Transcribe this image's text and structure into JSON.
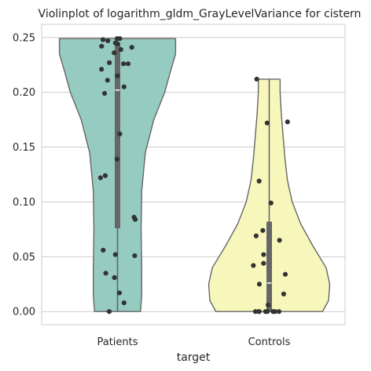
{
  "chart_data": {
    "type": "violin",
    "title": "Violinplot of logarithm_gldm_GrayLevelVariance for cistern",
    "xlabel": "target",
    "ylabel": "",
    "ylim": [
      -0.012,
      0.262
    ],
    "yticks": [
      "0.00",
      "0.05",
      "0.10",
      "0.15",
      "0.20",
      "0.25"
    ],
    "ytick_values": [
      0.0,
      0.05,
      0.1,
      0.15,
      0.2,
      0.25
    ],
    "grid": true,
    "categories": [
      "Patients",
      "Controls"
    ],
    "series": [
      {
        "category": "Patients",
        "color": "#95cbc1",
        "range": [
          0.0,
          0.249
        ],
        "quartiles": [
          0.076,
          0.202,
          0.245
        ],
        "median": 0.202,
        "points": [
          0.249,
          0.249,
          0.248,
          0.247,
          0.245,
          0.244,
          0.242,
          0.241,
          0.239,
          0.236,
          0.227,
          0.226,
          0.226,
          0.221,
          0.215,
          0.211,
          0.205,
          0.199,
          0.162,
          0.139,
          0.124,
          0.122,
          0.086,
          0.084,
          0.056,
          0.052,
          0.051,
          0.035,
          0.031,
          0.017,
          0.008,
          0.0
        ],
        "density": [
          [
            0.0,
            0.38
          ],
          [
            0.015,
            0.4
          ],
          [
            0.04,
            0.4
          ],
          [
            0.075,
            0.39
          ],
          [
            0.11,
            0.4
          ],
          [
            0.145,
            0.46
          ],
          [
            0.175,
            0.6
          ],
          [
            0.2,
            0.78
          ],
          [
            0.22,
            0.88
          ],
          [
            0.235,
            0.96
          ],
          [
            0.249,
            0.96
          ]
        ]
      },
      {
        "category": "Controls",
        "color": "#f7f7bb",
        "range": [
          0.0,
          0.212
        ],
        "quartiles": [
          0.0,
          0.026,
          0.082
        ],
        "median": 0.026,
        "points": [
          0.212,
          0.173,
          0.172,
          0.119,
          0.099,
          0.074,
          0.069,
          0.065,
          0.052,
          0.044,
          0.042,
          0.034,
          0.025,
          0.016,
          0.006,
          0.0,
          0.0,
          0.0,
          0.0,
          0.0,
          0.0,
          0.0,
          0.0
        ],
        "density": [
          [
            0.0,
            0.88
          ],
          [
            0.01,
            0.98
          ],
          [
            0.025,
            1.0
          ],
          [
            0.04,
            0.94
          ],
          [
            0.06,
            0.72
          ],
          [
            0.08,
            0.52
          ],
          [
            0.1,
            0.38
          ],
          [
            0.12,
            0.3
          ],
          [
            0.14,
            0.26
          ],
          [
            0.16,
            0.23
          ],
          [
            0.18,
            0.2
          ],
          [
            0.2,
            0.18
          ],
          [
            0.212,
            0.18
          ]
        ]
      }
    ]
  }
}
